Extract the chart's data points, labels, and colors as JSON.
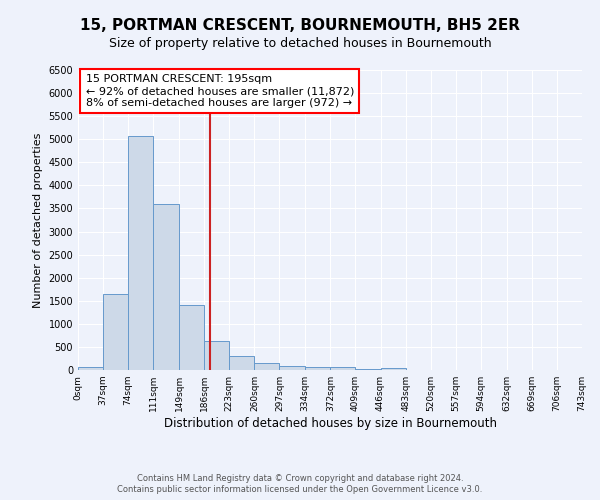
{
  "title": "15, PORTMAN CRESCENT, BOURNEMOUTH, BH5 2ER",
  "subtitle": "Size of property relative to detached houses in Bournemouth",
  "xlabel": "Distribution of detached houses by size in Bournemouth",
  "ylabel": "Number of detached properties",
  "property_size": 195,
  "annotation_title": "15 PORTMAN CRESCENT: 195sqm",
  "annotation_line1": "← 92% of detached houses are smaller (11,872)",
  "annotation_line2": "8% of semi-detached houses are larger (972) →",
  "bar_color": "#cdd9e8",
  "bar_edge_color": "#6699cc",
  "vline_color": "#cc2222",
  "background_color": "#eef2fb",
  "grid_color": "#ffffff",
  "bin_edges": [
    0,
    37,
    74,
    111,
    149,
    186,
    223,
    260,
    297,
    334,
    372,
    409,
    446,
    483,
    520,
    557,
    594,
    632,
    669,
    706,
    743
  ],
  "bar_heights": [
    75,
    1650,
    5075,
    3600,
    1400,
    620,
    305,
    155,
    90,
    65,
    55,
    30,
    45,
    0,
    0,
    0,
    0,
    0,
    0,
    0
  ],
  "ylim": [
    0,
    6500
  ],
  "xlim": [
    0,
    743
  ],
  "yticks": [
    0,
    500,
    1000,
    1500,
    2000,
    2500,
    3000,
    3500,
    4000,
    4500,
    5000,
    5500,
    6000,
    6500
  ],
  "xtick_labels": [
    "0sqm",
    "37sqm",
    "74sqm",
    "111sqm",
    "149sqm",
    "186sqm",
    "223sqm",
    "260sqm",
    "297sqm",
    "334sqm",
    "372sqm",
    "409sqm",
    "446sqm",
    "483sqm",
    "520sqm",
    "557sqm",
    "594sqm",
    "632sqm",
    "669sqm",
    "706sqm",
    "743sqm"
  ],
  "footer_line1": "Contains HM Land Registry data © Crown copyright and database right 2024.",
  "footer_line2": "Contains public sector information licensed under the Open Government Licence v3.0.",
  "title_fontsize": 11,
  "subtitle_fontsize": 9,
  "annotation_fontsize": 8
}
